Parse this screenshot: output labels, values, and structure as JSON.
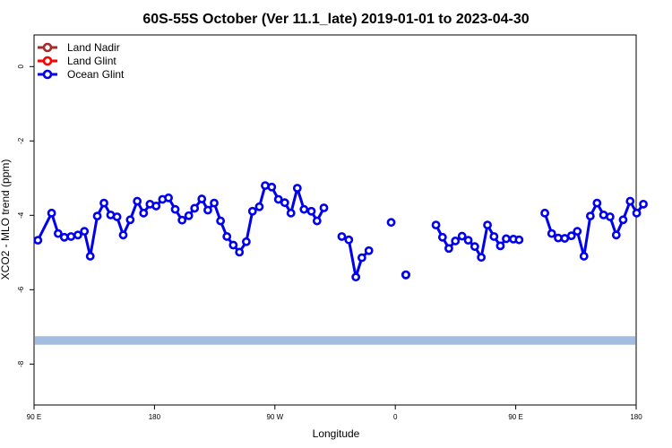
{
  "chart_data": {
    "type": "line",
    "title": "60S-55S October (Ver 11.1_late)   2019-01-01 to 2023-04-30",
    "xlabel": "Longitude",
    "ylabel": "XCO2 - MLO trend (ppm)",
    "xlim": [
      90,
      450
    ],
    "ylim": [
      -9.1,
      0.85
    ],
    "x_ticks": [
      {
        "value": 90,
        "label": "90 E"
      },
      {
        "value": 162,
        "label": "180"
      },
      {
        "value": 234,
        "label": "90 W"
      },
      {
        "value": 306,
        "label": "0"
      },
      {
        "value": 378,
        "label": "90 E"
      },
      {
        "value": 450,
        "label": "180"
      }
    ],
    "y_ticks": [
      {
        "value": 0,
        "label": "0"
      },
      {
        "value": -2,
        "label": "-2"
      },
      {
        "value": -4,
        "label": "-4"
      },
      {
        "value": -6,
        "label": "-6"
      },
      {
        "value": -8,
        "label": "-8"
      }
    ],
    "band": {
      "y_min": -7.48,
      "y_max": -7.25,
      "color": "#a3bde0"
    },
    "legend": {
      "placement": "top-left",
      "entries": [
        {
          "name": "Land Nadir",
          "color": "#a52a2a"
        },
        {
          "name": "Land Glint",
          "color": "#ff0000"
        },
        {
          "name": "Ocean Glint",
          "color": "#0000ee"
        }
      ]
    },
    "series": [
      {
        "name": "Ocean Glint",
        "color": "#0000ee",
        "segments": [
          [
            [
              92.3,
              -4.67
            ],
            [
              100.5,
              -3.94
            ],
            [
              104.4,
              -4.49
            ],
            [
              108.1,
              -4.59
            ],
            [
              112.1,
              -4.57
            ],
            [
              116.2,
              -4.53
            ],
            [
              120.1,
              -4.43
            ],
            [
              123.6,
              -5.1
            ],
            [
              127.8,
              -4.02
            ],
            [
              131.8,
              -3.67
            ],
            [
              135.8,
              -3.99
            ],
            [
              139.6,
              -4.04
            ],
            [
              143.3,
              -4.53
            ],
            [
              147.5,
              -4.12
            ],
            [
              151.7,
              -3.62
            ],
            [
              155.5,
              -3.94
            ],
            [
              159.3,
              -3.7
            ],
            [
              163.0,
              -3.75
            ],
            [
              166.8,
              -3.57
            ],
            [
              170.4,
              -3.53
            ],
            [
              174.4,
              -3.84
            ],
            [
              178.5,
              -4.13
            ],
            [
              182.5,
              -4.01
            ],
            [
              186.0,
              -3.81
            ],
            [
              190.3,
              -3.56
            ],
            [
              193.9,
              -3.86
            ],
            [
              197.7,
              -3.67
            ],
            [
              201.5,
              -4.15
            ],
            [
              205.3,
              -4.57
            ],
            [
              209.1,
              -4.8
            ],
            [
              212.8,
              -4.99
            ],
            [
              216.9,
              -4.71
            ],
            [
              220.6,
              -3.89
            ],
            [
              224.7,
              -3.77
            ],
            [
              228.2,
              -3.2
            ],
            [
              232.1,
              -3.24
            ],
            [
              236.1,
              -3.57
            ],
            [
              239.9,
              -3.66
            ],
            [
              243.6,
              -3.94
            ],
            [
              247.4,
              -3.27
            ],
            [
              251.4,
              -3.84
            ],
            [
              255.8,
              -3.89
            ],
            [
              259.2,
              -4.15
            ],
            [
              263.3,
              -3.8
            ]
          ],
          [
            [
              274.0,
              -4.57
            ],
            [
              278.2,
              -4.66
            ],
            [
              282.4,
              -5.66
            ],
            [
              286.0,
              -5.14
            ],
            [
              290.2,
              -4.95
            ]
          ],
          [
            [
              303.5,
              -4.19
            ]
          ],
          [
            [
              312.3,
              -5.6
            ]
          ],
          [
            [
              312.3,
              -5.6
            ]
          ],
          [
            [
              312.3,
              -5.6
            ]
          ],
          [
            [
              312.3,
              -5.6
            ]
          ]
        ]
      },
      {
        "name": "",
        "color": "#0000ee",
        "segments": [
          [
            [
              330.3,
              -4.26
            ],
            [
              334.2,
              -4.59
            ],
            [
              338.0,
              -4.89
            ],
            [
              341.9,
              -4.69
            ],
            [
              345.9,
              -4.56
            ],
            [
              349.6,
              -4.67
            ],
            [
              353.5,
              -4.84
            ],
            [
              357.4,
              -5.13
            ],
            [
              361.1,
              -4.26
            ],
            [
              365.0,
              -4.57
            ],
            [
              368.8,
              -4.82
            ],
            [
              372.3,
              -4.63
            ],
            [
              376.6,
              -4.64
            ],
            [
              380.0,
              -4.66
            ]
          ],
          [
            [
              395.4,
              -3.94
            ],
            [
              399.5,
              -4.49
            ],
            [
              403.4,
              -4.61
            ],
            [
              407.3,
              -4.62
            ],
            [
              411.3,
              -4.55
            ],
            [
              414.8,
              -4.43
            ],
            [
              418.8,
              -5.1
            ],
            [
              422.6,
              -4.02
            ],
            [
              426.6,
              -3.67
            ],
            [
              430.5,
              -3.99
            ],
            [
              434.4,
              -4.04
            ],
            [
              438.1,
              -4.53
            ],
            [
              442.2,
              -4.12
            ],
            [
              446.4,
              -3.62
            ],
            [
              450.3,
              -3.94
            ],
            [
              454.3,
              -3.7
            ]
          ]
        ]
      }
    ]
  }
}
